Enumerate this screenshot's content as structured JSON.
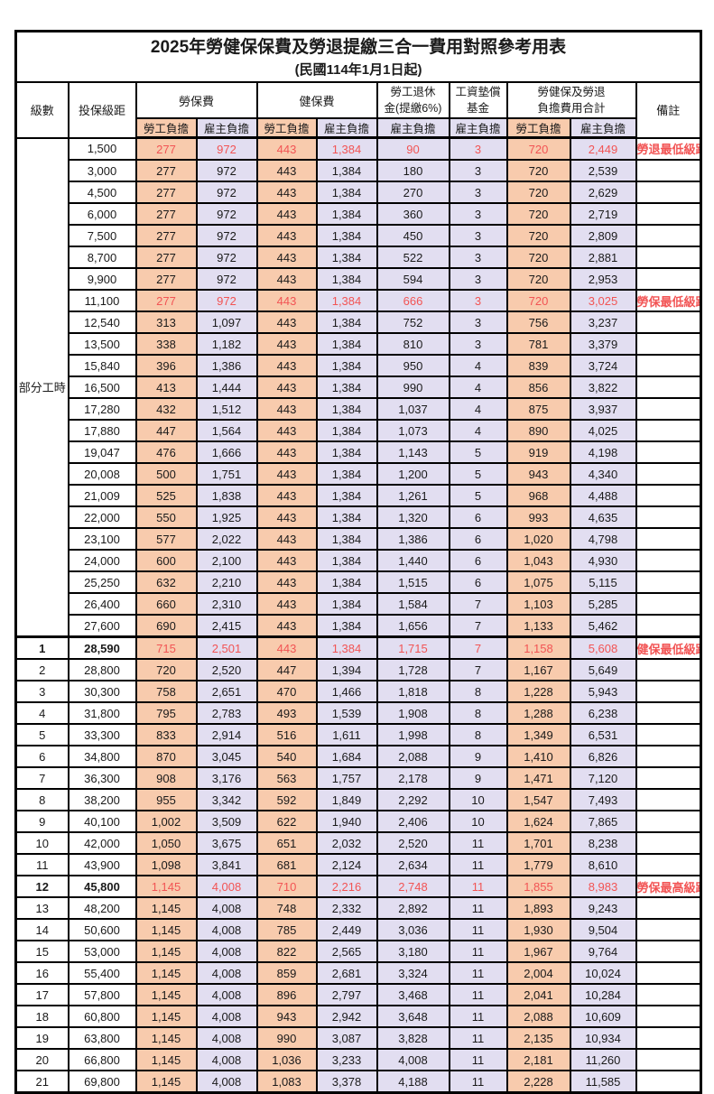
{
  "title": "2025年勞健保保費及勞退提繳三合一費用對照參考用表",
  "subtitle": "(民國114年1月1日起)",
  "colors": {
    "employee_bg": "#F8CBAD",
    "employer_bg": "#E2DEF1",
    "highlight_text": "#F25454",
    "border": "#000000",
    "text": "#1A1A1A"
  },
  "header": {
    "level": "級數",
    "bracket": "投保級距",
    "labor_insurance": "勞保費",
    "health_insurance": "健保費",
    "pension_line1": "勞工退休",
    "pension_line2": "金(提繳6%)",
    "wage_fund_line1": "工資墊償",
    "wage_fund_line2": "基金",
    "total_line1": "勞健保及勞退",
    "total_line2": "負擔費用合計",
    "remark": "備註",
    "employee_burden": "勞工負擔",
    "employer_burden": "雇主負擔"
  },
  "part_time": {
    "label": "部分工時",
    "rowspan": 23
  },
  "rows": [
    {
      "level": null,
      "bracket": "1,500",
      "values": [
        "277",
        "972",
        "443",
        "1,384",
        "90",
        "3",
        "720",
        "2,449"
      ],
      "remark": "勞退最低級距",
      "highlight": true,
      "bold": false,
      "thick": false
    },
    {
      "level": null,
      "bracket": "3,000",
      "values": [
        "277",
        "972",
        "443",
        "1,384",
        "180",
        "3",
        "720",
        "2,539"
      ],
      "remark": "",
      "highlight": false,
      "bold": false,
      "thick": false
    },
    {
      "level": null,
      "bracket": "4,500",
      "values": [
        "277",
        "972",
        "443",
        "1,384",
        "270",
        "3",
        "720",
        "2,629"
      ],
      "remark": "",
      "highlight": false,
      "bold": false,
      "thick": false
    },
    {
      "level": null,
      "bracket": "6,000",
      "values": [
        "277",
        "972",
        "443",
        "1,384",
        "360",
        "3",
        "720",
        "2,719"
      ],
      "remark": "",
      "highlight": false,
      "bold": false,
      "thick": false
    },
    {
      "level": null,
      "bracket": "7,500",
      "values": [
        "277",
        "972",
        "443",
        "1,384",
        "450",
        "3",
        "720",
        "2,809"
      ],
      "remark": "",
      "highlight": false,
      "bold": false,
      "thick": false
    },
    {
      "level": null,
      "bracket": "8,700",
      "values": [
        "277",
        "972",
        "443",
        "1,384",
        "522",
        "3",
        "720",
        "2,881"
      ],
      "remark": "",
      "highlight": false,
      "bold": false,
      "thick": false
    },
    {
      "level": null,
      "bracket": "9,900",
      "values": [
        "277",
        "972",
        "443",
        "1,384",
        "594",
        "3",
        "720",
        "2,953"
      ],
      "remark": "",
      "highlight": false,
      "bold": false,
      "thick": false
    },
    {
      "level": null,
      "bracket": "11,100",
      "values": [
        "277",
        "972",
        "443",
        "1,384",
        "666",
        "3",
        "720",
        "3,025"
      ],
      "remark": "勞保最低級距",
      "highlight": true,
      "bold": false,
      "thick": false
    },
    {
      "level": null,
      "bracket": "12,540",
      "values": [
        "313",
        "1,097",
        "443",
        "1,384",
        "752",
        "3",
        "756",
        "3,237"
      ],
      "remark": "",
      "highlight": false,
      "bold": false,
      "thick": false
    },
    {
      "level": null,
      "bracket": "13,500",
      "values": [
        "338",
        "1,182",
        "443",
        "1,384",
        "810",
        "3",
        "781",
        "3,379"
      ],
      "remark": "",
      "highlight": false,
      "bold": false,
      "thick": false
    },
    {
      "level": null,
      "bracket": "15,840",
      "values": [
        "396",
        "1,386",
        "443",
        "1,384",
        "950",
        "4",
        "839",
        "3,724"
      ],
      "remark": "",
      "highlight": false,
      "bold": false,
      "thick": false
    },
    {
      "level": null,
      "bracket": "16,500",
      "values": [
        "413",
        "1,444",
        "443",
        "1,384",
        "990",
        "4",
        "856",
        "3,822"
      ],
      "remark": "",
      "highlight": false,
      "bold": false,
      "thick": false
    },
    {
      "level": null,
      "bracket": "17,280",
      "values": [
        "432",
        "1,512",
        "443",
        "1,384",
        "1,037",
        "4",
        "875",
        "3,937"
      ],
      "remark": "",
      "highlight": false,
      "bold": false,
      "thick": false
    },
    {
      "level": null,
      "bracket": "17,880",
      "values": [
        "447",
        "1,564",
        "443",
        "1,384",
        "1,073",
        "4",
        "890",
        "4,025"
      ],
      "remark": "",
      "highlight": false,
      "bold": false,
      "thick": false
    },
    {
      "level": null,
      "bracket": "19,047",
      "values": [
        "476",
        "1,666",
        "443",
        "1,384",
        "1,143",
        "5",
        "919",
        "4,198"
      ],
      "remark": "",
      "highlight": false,
      "bold": false,
      "thick": false
    },
    {
      "level": null,
      "bracket": "20,008",
      "values": [
        "500",
        "1,751",
        "443",
        "1,384",
        "1,200",
        "5",
        "943",
        "4,340"
      ],
      "remark": "",
      "highlight": false,
      "bold": false,
      "thick": false
    },
    {
      "level": null,
      "bracket": "21,009",
      "values": [
        "525",
        "1,838",
        "443",
        "1,384",
        "1,261",
        "5",
        "968",
        "4,488"
      ],
      "remark": "",
      "highlight": false,
      "bold": false,
      "thick": false
    },
    {
      "level": null,
      "bracket": "22,000",
      "values": [
        "550",
        "1,925",
        "443",
        "1,384",
        "1,320",
        "6",
        "993",
        "4,635"
      ],
      "remark": "",
      "highlight": false,
      "bold": false,
      "thick": false
    },
    {
      "level": null,
      "bracket": "23,100",
      "values": [
        "577",
        "2,022",
        "443",
        "1,384",
        "1,386",
        "6",
        "1,020",
        "4,798"
      ],
      "remark": "",
      "highlight": false,
      "bold": false,
      "thick": false
    },
    {
      "level": null,
      "bracket": "24,000",
      "values": [
        "600",
        "2,100",
        "443",
        "1,384",
        "1,440",
        "6",
        "1,043",
        "4,930"
      ],
      "remark": "",
      "highlight": false,
      "bold": false,
      "thick": false
    },
    {
      "level": null,
      "bracket": "25,250",
      "values": [
        "632",
        "2,210",
        "443",
        "1,384",
        "1,515",
        "6",
        "1,075",
        "5,115"
      ],
      "remark": "",
      "highlight": false,
      "bold": false,
      "thick": false
    },
    {
      "level": null,
      "bracket": "26,400",
      "values": [
        "660",
        "2,310",
        "443",
        "1,384",
        "1,584",
        "7",
        "1,103",
        "5,285"
      ],
      "remark": "",
      "highlight": false,
      "bold": false,
      "thick": false
    },
    {
      "level": null,
      "bracket": "27,600",
      "values": [
        "690",
        "2,415",
        "443",
        "1,384",
        "1,656",
        "7",
        "1,133",
        "5,462"
      ],
      "remark": "",
      "highlight": false,
      "bold": false,
      "thick": false
    },
    {
      "level": "1",
      "bracket": "28,590",
      "values": [
        "715",
        "2,501",
        "443",
        "1,384",
        "1,715",
        "7",
        "1,158",
        "5,608"
      ],
      "remark": "健保最低級距",
      "highlight": true,
      "bold": true,
      "thick": true
    },
    {
      "level": "2",
      "bracket": "28,800",
      "values": [
        "720",
        "2,520",
        "447",
        "1,394",
        "1,728",
        "7",
        "1,167",
        "5,649"
      ],
      "remark": "",
      "highlight": false,
      "bold": false,
      "thick": false
    },
    {
      "level": "3",
      "bracket": "30,300",
      "values": [
        "758",
        "2,651",
        "470",
        "1,466",
        "1,818",
        "8",
        "1,228",
        "5,943"
      ],
      "remark": "",
      "highlight": false,
      "bold": false,
      "thick": false
    },
    {
      "level": "4",
      "bracket": "31,800",
      "values": [
        "795",
        "2,783",
        "493",
        "1,539",
        "1,908",
        "8",
        "1,288",
        "6,238"
      ],
      "remark": "",
      "highlight": false,
      "bold": false,
      "thick": false
    },
    {
      "level": "5",
      "bracket": "33,300",
      "values": [
        "833",
        "2,914",
        "516",
        "1,611",
        "1,998",
        "8",
        "1,349",
        "6,531"
      ],
      "remark": "",
      "highlight": false,
      "bold": false,
      "thick": false
    },
    {
      "level": "6",
      "bracket": "34,800",
      "values": [
        "870",
        "3,045",
        "540",
        "1,684",
        "2,088",
        "9",
        "1,410",
        "6,826"
      ],
      "remark": "",
      "highlight": false,
      "bold": false,
      "thick": false
    },
    {
      "level": "7",
      "bracket": "36,300",
      "values": [
        "908",
        "3,176",
        "563",
        "1,757",
        "2,178",
        "9",
        "1,471",
        "7,120"
      ],
      "remark": "",
      "highlight": false,
      "bold": false,
      "thick": false
    },
    {
      "level": "8",
      "bracket": "38,200",
      "values": [
        "955",
        "3,342",
        "592",
        "1,849",
        "2,292",
        "10",
        "1,547",
        "7,493"
      ],
      "remark": "",
      "highlight": false,
      "bold": false,
      "thick": false
    },
    {
      "level": "9",
      "bracket": "40,100",
      "values": [
        "1,002",
        "3,509",
        "622",
        "1,940",
        "2,406",
        "10",
        "1,624",
        "7,865"
      ],
      "remark": "",
      "highlight": false,
      "bold": false,
      "thick": false
    },
    {
      "level": "10",
      "bracket": "42,000",
      "values": [
        "1,050",
        "3,675",
        "651",
        "2,032",
        "2,520",
        "11",
        "1,701",
        "8,238"
      ],
      "remark": "",
      "highlight": false,
      "bold": false,
      "thick": false
    },
    {
      "level": "11",
      "bracket": "43,900",
      "values": [
        "1,098",
        "3,841",
        "681",
        "2,124",
        "2,634",
        "11",
        "1,779",
        "8,610"
      ],
      "remark": "",
      "highlight": false,
      "bold": false,
      "thick": false
    },
    {
      "level": "12",
      "bracket": "45,800",
      "values": [
        "1,145",
        "4,008",
        "710",
        "2,216",
        "2,748",
        "11",
        "1,855",
        "8,983"
      ],
      "remark": "勞保最高級距",
      "highlight": true,
      "bold": true,
      "thick": false
    },
    {
      "level": "13",
      "bracket": "48,200",
      "values": [
        "1,145",
        "4,008",
        "748",
        "2,332",
        "2,892",
        "11",
        "1,893",
        "9,243"
      ],
      "remark": "",
      "highlight": false,
      "bold": false,
      "thick": false
    },
    {
      "level": "14",
      "bracket": "50,600",
      "values": [
        "1,145",
        "4,008",
        "785",
        "2,449",
        "3,036",
        "11",
        "1,930",
        "9,504"
      ],
      "remark": "",
      "highlight": false,
      "bold": false,
      "thick": false
    },
    {
      "level": "15",
      "bracket": "53,000",
      "values": [
        "1,145",
        "4,008",
        "822",
        "2,565",
        "3,180",
        "11",
        "1,967",
        "9,764"
      ],
      "remark": "",
      "highlight": false,
      "bold": false,
      "thick": false
    },
    {
      "level": "16",
      "bracket": "55,400",
      "values": [
        "1,145",
        "4,008",
        "859",
        "2,681",
        "3,324",
        "11",
        "2,004",
        "10,024"
      ],
      "remark": "",
      "highlight": false,
      "bold": false,
      "thick": false
    },
    {
      "level": "17",
      "bracket": "57,800",
      "values": [
        "1,145",
        "4,008",
        "896",
        "2,797",
        "3,468",
        "11",
        "2,041",
        "10,284"
      ],
      "remark": "",
      "highlight": false,
      "bold": false,
      "thick": false
    },
    {
      "level": "18",
      "bracket": "60,800",
      "values": [
        "1,145",
        "4,008",
        "943",
        "2,942",
        "3,648",
        "11",
        "2,088",
        "10,609"
      ],
      "remark": "",
      "highlight": false,
      "bold": false,
      "thick": false
    },
    {
      "level": "19",
      "bracket": "63,800",
      "values": [
        "1,145",
        "4,008",
        "990",
        "3,087",
        "3,828",
        "11",
        "2,135",
        "10,934"
      ],
      "remark": "",
      "highlight": false,
      "bold": false,
      "thick": false
    },
    {
      "level": "20",
      "bracket": "66,800",
      "values": [
        "1,145",
        "4,008",
        "1,036",
        "3,233",
        "4,008",
        "11",
        "2,181",
        "11,260"
      ],
      "remark": "",
      "highlight": false,
      "bold": false,
      "thick": false
    },
    {
      "level": "21",
      "bracket": "69,800",
      "values": [
        "1,145",
        "4,008",
        "1,083",
        "3,378",
        "4,188",
        "11",
        "2,228",
        "11,585"
      ],
      "remark": "",
      "highlight": false,
      "bold": false,
      "thick": false
    }
  ]
}
